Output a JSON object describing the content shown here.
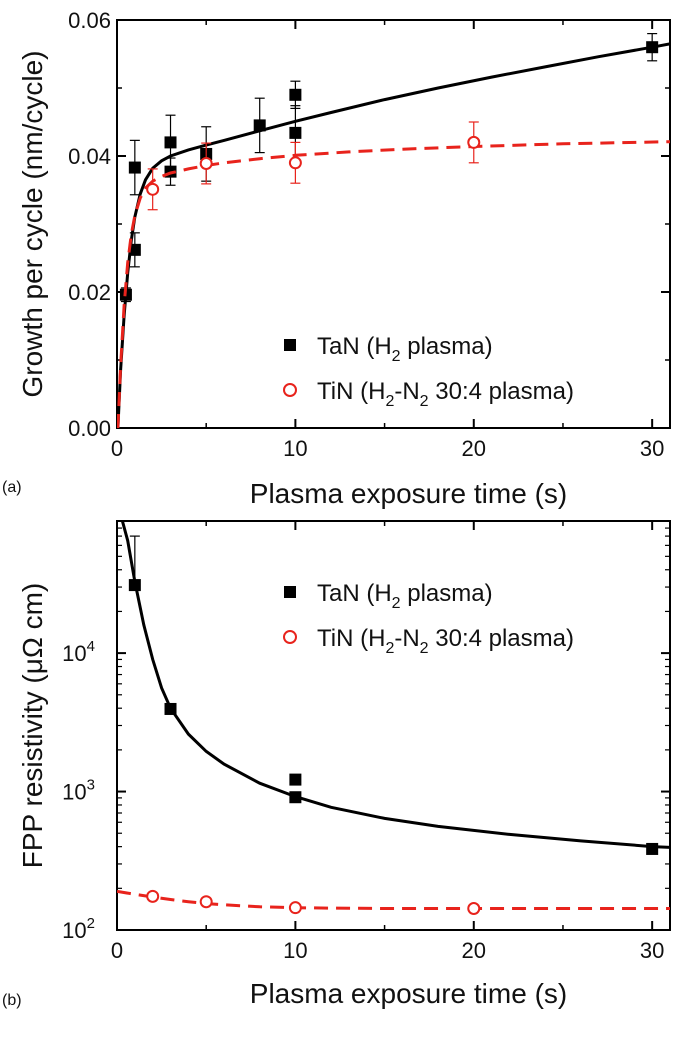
{
  "chart_data": [
    {
      "panel_label": "(a)",
      "type": "scatter",
      "xlabel": "Plasma exposure time (s)",
      "ylabel": "Growth per cycle (nm/cycle)",
      "xlim": [
        0,
        31
      ],
      "ylim": [
        0,
        0.06
      ],
      "x_ticks": [
        0,
        10,
        20,
        30
      ],
      "y_ticks": [
        0.0,
        0.02,
        0.04,
        0.06
      ],
      "x_tick_labels": [
        "0",
        "10",
        "20",
        "30"
      ],
      "y_tick_labels": [
        "0.00",
        "0.02",
        "0.04",
        "0.06"
      ],
      "yscale": "linear",
      "legend_position": "bottom-right",
      "series": [
        {
          "name": "TaN (H2 plasma)",
          "legend_main": "TaN (H",
          "legend_sub": "2",
          "legend_tail": " plasma)",
          "color": "#000000",
          "marker": "filled-square",
          "x": [
            0.5,
            1,
            1,
            3,
            3,
            5,
            8,
            10,
            10,
            30
          ],
          "y": [
            0.0196,
            0.0262,
            0.0383,
            0.0377,
            0.042,
            0.0403,
            0.0445,
            0.049,
            0.0434,
            0.056
          ],
          "yerr": [
            0.001,
            0.0025,
            0.004,
            0.002,
            0.004,
            0.004,
            0.004,
            0.002,
            0.004,
            0.002
          ],
          "fit_line": "solid",
          "fit_x": [
            0.05,
            0.2,
            0.4,
            0.6,
            0.8,
            1.0,
            1.3,
            1.6,
            2.0,
            2.5,
            3.0,
            4.0,
            5.0,
            6.0,
            8.0,
            10.0,
            12.0,
            15.0,
            18.0,
            21.0,
            24.0,
            27.0,
            30.0,
            31.0
          ],
          "fit_y": [
            0.0,
            0.0085,
            0.0165,
            0.0228,
            0.0276,
            0.031,
            0.0344,
            0.0365,
            0.0382,
            0.0393,
            0.04,
            0.0409,
            0.0416,
            0.0423,
            0.0437,
            0.0451,
            0.0464,
            0.0483,
            0.05,
            0.0516,
            0.0531,
            0.0546,
            0.056,
            0.0565
          ]
        },
        {
          "name": "TiN (H2-N2 30:4 plasma)",
          "legend_main": "TiN (H",
          "legend_sub": "2",
          "legend_mid": "-N",
          "legend_sub2": "2",
          "legend_tail": " 30:4 plasma)",
          "color": "#e8231c",
          "marker": "open-circle",
          "x": [
            2,
            5,
            10,
            20
          ],
          "y": [
            0.0351,
            0.0389,
            0.039,
            0.042
          ],
          "yerr": [
            0.003,
            0.003,
            0.003,
            0.003
          ],
          "fit_line": "dashed",
          "fit_x": [
            0.05,
            0.2,
            0.4,
            0.6,
            0.8,
            1.0,
            1.3,
            1.6,
            2.0,
            2.5,
            3.0,
            4.0,
            5.0,
            6.0,
            8.0,
            10.0,
            13.0,
            16.0,
            20.0,
            25.0,
            31.0
          ],
          "fit_y": [
            0.0,
            0.0091,
            0.018,
            0.0243,
            0.0285,
            0.0312,
            0.0338,
            0.0353,
            0.0363,
            0.037,
            0.0375,
            0.0381,
            0.0386,
            0.039,
            0.0396,
            0.0401,
            0.0406,
            0.041,
            0.0414,
            0.0418,
            0.0421
          ]
        }
      ]
    },
    {
      "panel_label": "(b)",
      "type": "scatter",
      "xlabel": "Plasma exposure time (s)",
      "ylabel": "FPP resistivity (μΩ cm)",
      "xlim": [
        0,
        31
      ],
      "ylim": [
        100,
        90000
      ],
      "yscale": "log",
      "x_ticks": [
        0,
        10,
        20,
        30
      ],
      "x_tick_labels": [
        "0",
        "10",
        "20",
        "30"
      ],
      "y_ticks": [
        100,
        1000,
        10000
      ],
      "y_tick_base": "10",
      "y_tick_exponents": [
        "2",
        "3",
        "4"
      ],
      "legend_position": "top-right",
      "series": [
        {
          "name": "TaN (H2 plasma)",
          "legend_main": "TaN (H",
          "legend_sub": "2",
          "legend_tail": " plasma)",
          "color": "#000000",
          "marker": "filled-square",
          "x": [
            1,
            3,
            10,
            10,
            30
          ],
          "y": [
            31000,
            3950,
            1220,
            910,
            385
          ],
          "yerr_upper": [
            70000,
            null,
            null,
            null,
            null
          ],
          "fit_line": "solid",
          "fit_x": [
            0.3,
            0.6,
            1.0,
            1.5,
            2.0,
            2.5,
            3.0,
            4.0,
            5.0,
            6.0,
            8.0,
            10.0,
            12.0,
            15.0,
            18.0,
            22.0,
            26.0,
            30.0,
            31.0
          ],
          "fit_y": [
            90000,
            65000,
            33000,
            16000,
            9000,
            5600,
            4000,
            2600,
            1950,
            1580,
            1150,
            920,
            770,
            640,
            560,
            490,
            440,
            400,
            395
          ]
        },
        {
          "name": "TiN (H2-N2 30:4 plasma)",
          "legend_main": "TiN (H",
          "legend_sub": "2",
          "legend_mid": "-N",
          "legend_sub2": "2",
          "legend_tail": " 30:4 plasma)",
          "color": "#e8231c",
          "marker": "open-circle",
          "x": [
            2,
            5,
            10,
            20
          ],
          "y": [
            175,
            160,
            145,
            143
          ],
          "fit_line": "dashed",
          "fit_x": [
            0.0,
            1.0,
            2.0,
            3.0,
            4.0,
            5.0,
            6.0,
            8.0,
            10.0,
            12.0,
            15.0,
            20.0,
            25.0,
            31.0
          ],
          "fit_y": [
            190,
            181,
            173,
            166,
            160,
            155,
            152,
            147,
            145,
            144,
            143,
            143,
            143,
            143
          ]
        }
      ]
    }
  ]
}
